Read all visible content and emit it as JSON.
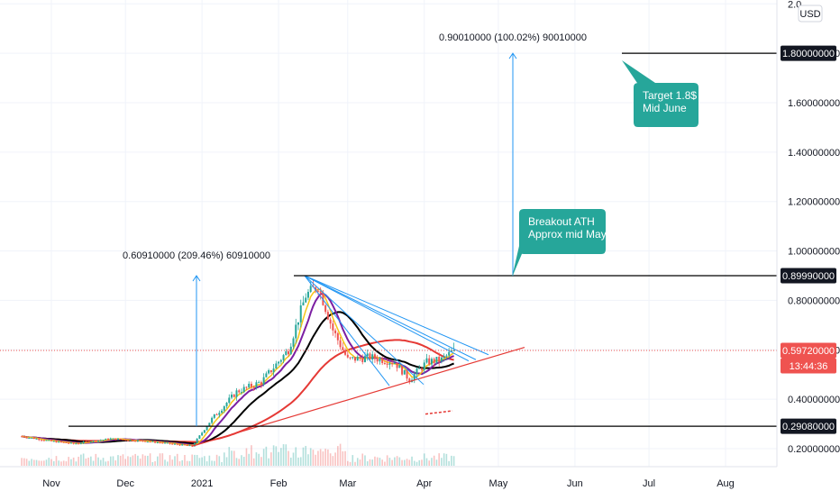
{
  "colors": {
    "background": "#ffffff",
    "grid": "#f0f3fa",
    "up_candle": "#26a69a",
    "down_candle": "#ef5350",
    "ma_fast": "#f5c518",
    "ma_mid": "#7b1fa2",
    "ma_slow": "#000000",
    "trend_support": "#e53935",
    "trend_resistance": "#2196f3",
    "level_line": "#000000",
    "price_line": "#ef5350",
    "callout_fill": "#26a69a",
    "arrow": "#2196f3"
  },
  "axis": {
    "currency": "USD",
    "time_labels": [
      "Nov",
      "Dec",
      "2021",
      "Feb",
      "Mar",
      "Apr",
      "May",
      "Jun",
      "Jul",
      "Aug"
    ]
  },
  "price_scale_labels": [
    "0.20000000",
    "0.40000000",
    "0.60000000",
    "0.80000000",
    "1.00000000",
    "1.20000000",
    "1.40000000",
    "1.60000000",
    "1.80000000",
    "2.0"
  ],
  "tags": [
    {
      "text": "1.80000000",
      "value": 1.8,
      "style": "dark"
    },
    {
      "text": "0.89990000",
      "value": 0.8999,
      "style": "dark"
    },
    {
      "text": "0.59720000",
      "value": 0.5972,
      "style": "red"
    },
    {
      "text": "13:44:36",
      "value": 0.5972,
      "style": "red_sub"
    },
    {
      "text": "0.29080000",
      "value": 0.2908,
      "style": "dark"
    }
  ],
  "annotations": {
    "measure_1": "0.60910000 (209.46%) 60910000",
    "measure_2": "0.90010000 (100.02%) 90010000",
    "callout_1": [
      "Breakout ATH",
      "Approx mid May"
    ],
    "callout_2": [
      "Target 1.8$",
      "Mid June"
    ]
  },
  "chart_data": {
    "type": "candlestick",
    "symbol": "",
    "currency": "USD",
    "x_axis_ticks": [
      "Nov",
      "Dec",
      "2021",
      "Feb",
      "Mar",
      "Apr",
      "May",
      "Jun",
      "Jul",
      "Aug"
    ],
    "y_axis_ticks": [
      0.2,
      0.4,
      0.6,
      0.8,
      1.0,
      1.2,
      1.4,
      1.6,
      1.8,
      2.0
    ],
    "y_range": [
      0.14,
      2.02
    ],
    "last_price": 0.5972,
    "countdown": "13:44:36",
    "horizontal_levels": [
      1.8,
      0.8999,
      0.2908
    ],
    "price_path": [
      {
        "date": "2020-10-20",
        "price": 0.25
      },
      {
        "date": "2020-11-01",
        "price": 0.23
      },
      {
        "date": "2020-11-10",
        "price": 0.22
      },
      {
        "date": "2020-11-25",
        "price": 0.24
      },
      {
        "date": "2020-12-10",
        "price": 0.23
      },
      {
        "date": "2020-12-28",
        "price": 0.21
      },
      {
        "date": "2021-01-05",
        "price": 0.32
      },
      {
        "date": "2021-01-15",
        "price": 0.43
      },
      {
        "date": "2021-01-25",
        "price": 0.47
      },
      {
        "date": "2021-02-05",
        "price": 0.6
      },
      {
        "date": "2021-02-12",
        "price": 0.82
      },
      {
        "date": "2021-02-17",
        "price": 0.86
      },
      {
        "date": "2021-02-23",
        "price": 0.68
      },
      {
        "date": "2021-03-01",
        "price": 0.56
      },
      {
        "date": "2021-03-10",
        "price": 0.57
      },
      {
        "date": "2021-03-20",
        "price": 0.55
      },
      {
        "date": "2021-03-26",
        "price": 0.48
      },
      {
        "date": "2021-04-02",
        "price": 0.55
      },
      {
        "date": "2021-04-08",
        "price": 0.56
      },
      {
        "date": "2021-04-13",
        "price": 0.5972
      }
    ],
    "annotations": [
      {
        "type": "price_range",
        "text": "0.60910000 (209.46%) 60910000",
        "from": 0.2908,
        "to": 0.8999
      },
      {
        "type": "price_range",
        "text": "0.90010000 (100.02%) 90010000",
        "from": 0.8999,
        "to": 1.8
      },
      {
        "type": "callout",
        "text": "Breakout ATH Approx mid May"
      },
      {
        "type": "callout",
        "text": "Target 1.8$ Mid June"
      }
    ]
  }
}
